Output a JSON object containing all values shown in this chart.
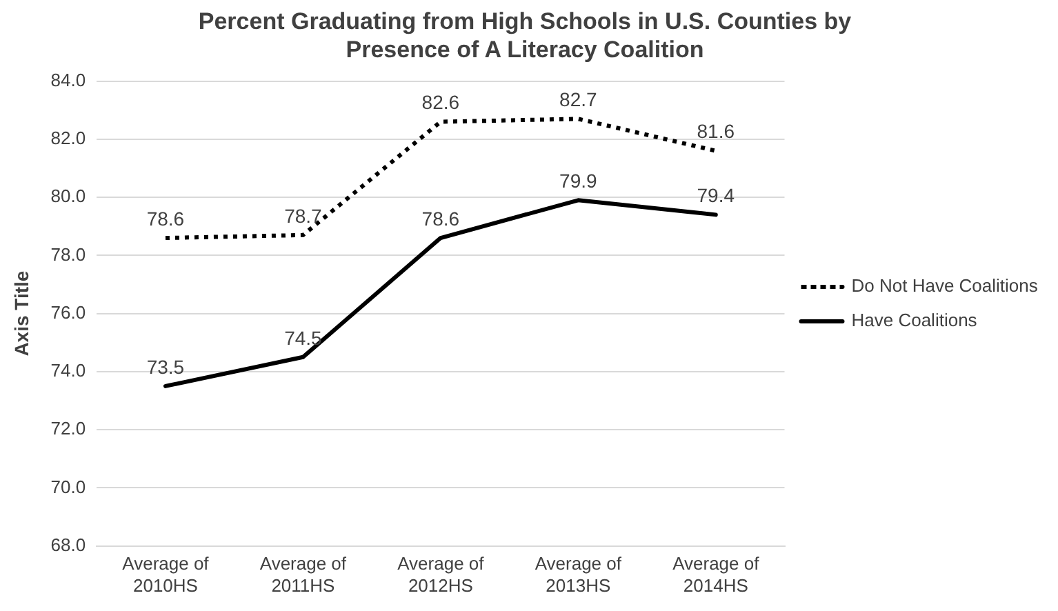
{
  "chart_data": {
    "type": "line",
    "title": "Percent Graduating from High Schools in U.S. Counties by Presence of A Literacy Coalition",
    "ylabel": "Axis Title",
    "categories": [
      "Average of 2010HS",
      "Average of 2011HS",
      "Average of 2012HS",
      "Average of 2013HS",
      "Average of 2014HS"
    ],
    "series": [
      {
        "name": "Do Not Have Coalitions",
        "color": "#000000",
        "line_style": "dotted",
        "values": [
          78.6,
          78.7,
          82.6,
          82.7,
          81.6
        ]
      },
      {
        "name": "Have Coalitions",
        "color": "#000000",
        "line_style": "solid",
        "values": [
          73.5,
          74.5,
          78.6,
          79.9,
          79.4
        ]
      }
    ],
    "ylim": [
      68,
      84
    ],
    "yticks": [
      {
        "value": 68,
        "label": "68.0"
      },
      {
        "value": 70,
        "label": "70.0"
      },
      {
        "value": 72,
        "label": "72.0"
      },
      {
        "value": 74,
        "label": "74.0"
      },
      {
        "value": 76,
        "label": "76.0"
      },
      {
        "value": 78,
        "label": "78.0"
      },
      {
        "value": 80,
        "label": "80.0"
      },
      {
        "value": 82,
        "label": "82.0"
      },
      {
        "value": 84,
        "label": "84.0"
      }
    ],
    "grid": "y",
    "legend": "right",
    "marker": "none",
    "data_labels": true
  }
}
